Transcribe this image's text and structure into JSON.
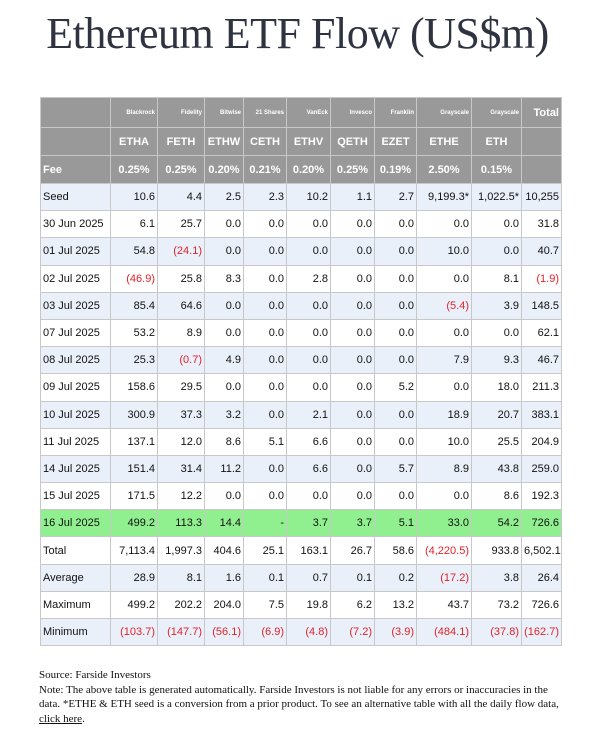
{
  "title": "Ethereum ETF Flow (US$m)",
  "issuers": [
    "Blackrock",
    "Fidelity",
    "Bitwise",
    "21 Shares",
    "VanEck",
    "Invesco",
    "Franklin",
    "Grayscale",
    "Grayscale"
  ],
  "total_header": "Total",
  "tickers": [
    "ETHA",
    "FETH",
    "ETHW",
    "CETH",
    "ETHV",
    "QETH",
    "EZET",
    "ETHE",
    "ETH"
  ],
  "fee_label": "Fee",
  "fees": [
    "0.25%",
    "0.25%",
    "0.20%",
    "0.21%",
    "0.20%",
    "0.25%",
    "0.19%",
    "2.50%",
    "0.15%"
  ],
  "rows": [
    {
      "label": "Seed",
      "values": [
        "10.6",
        "4.4",
        "2.5",
        "2.3",
        "10.2",
        "1.1",
        "2.7",
        "9,199.3*",
        "1,022.5*",
        "10,255"
      ]
    },
    {
      "label": "30 Jun 2025",
      "values": [
        "6.1",
        "25.7",
        "0.0",
        "0.0",
        "0.0",
        "0.0",
        "0.0",
        "0.0",
        "0.0",
        "31.8"
      ]
    },
    {
      "label": "01 Jul 2025",
      "values": [
        "54.8",
        "(24.1)",
        "0.0",
        "0.0",
        "0.0",
        "0.0",
        "0.0",
        "10.0",
        "0.0",
        "40.7"
      ]
    },
    {
      "label": "02 Jul 2025",
      "values": [
        "(46.9)",
        "25.8",
        "8.3",
        "0.0",
        "2.8",
        "0.0",
        "0.0",
        "0.0",
        "8.1",
        "(1.9)"
      ]
    },
    {
      "label": "03 Jul 2025",
      "values": [
        "85.4",
        "64.6",
        "0.0",
        "0.0",
        "0.0",
        "0.0",
        "0.0",
        "(5.4)",
        "3.9",
        "148.5"
      ]
    },
    {
      "label": "07 Jul 2025",
      "values": [
        "53.2",
        "8.9",
        "0.0",
        "0.0",
        "0.0",
        "0.0",
        "0.0",
        "0.0",
        "0.0",
        "62.1"
      ]
    },
    {
      "label": "08 Jul 2025",
      "values": [
        "25.3",
        "(0.7)",
        "4.9",
        "0.0",
        "0.0",
        "0.0",
        "0.0",
        "7.9",
        "9.3",
        "46.7"
      ]
    },
    {
      "label": "09 Jul 2025",
      "values": [
        "158.6",
        "29.5",
        "0.0",
        "0.0",
        "0.0",
        "0.0",
        "5.2",
        "0.0",
        "18.0",
        "211.3"
      ]
    },
    {
      "label": "10 Jul 2025",
      "values": [
        "300.9",
        "37.3",
        "3.2",
        "0.0",
        "2.1",
        "0.0",
        "0.0",
        "18.9",
        "20.7",
        "383.1"
      ]
    },
    {
      "label": "11 Jul 2025",
      "values": [
        "137.1",
        "12.0",
        "8.6",
        "5.1",
        "6.6",
        "0.0",
        "0.0",
        "10.0",
        "25.5",
        "204.9"
      ]
    },
    {
      "label": "14 Jul 2025",
      "values": [
        "151.4",
        "31.4",
        "11.2",
        "0.0",
        "6.6",
        "0.0",
        "5.7",
        "8.9",
        "43.8",
        "259.0"
      ]
    },
    {
      "label": "15 Jul 2025",
      "values": [
        "171.5",
        "12.2",
        "0.0",
        "0.0",
        "0.0",
        "0.0",
        "0.0",
        "0.0",
        "8.6",
        "192.3"
      ]
    },
    {
      "label": "16 Jul 2025",
      "values": [
        "499.2",
        "113.3",
        "14.4",
        "-",
        "3.7",
        "3.7",
        "5.1",
        "33.0",
        "54.2",
        "726.6"
      ]
    },
    {
      "label": "Total",
      "values": [
        "7,113.4",
        "1,997.3",
        "404.6",
        "25.1",
        "163.1",
        "26.7",
        "58.6",
        "(4,220.5)",
        "933.8",
        "6,502.1"
      ]
    },
    {
      "label": "Average",
      "values": [
        "28.9",
        "8.1",
        "1.6",
        "0.1",
        "0.7",
        "0.1",
        "0.2",
        "(17.2)",
        "3.8",
        "26.4"
      ]
    },
    {
      "label": "Maximum",
      "values": [
        "499.2",
        "202.2",
        "204.0",
        "7.5",
        "19.8",
        "6.2",
        "13.2",
        "43.7",
        "73.2",
        "726.6"
      ]
    },
    {
      "label": "Minimum",
      "values": [
        "(103.7)",
        "(147.7)",
        "(56.1)",
        "(6.9)",
        "(4.8)",
        "(7.2)",
        "(3.9)",
        "(484.1)",
        "(37.8)",
        "(162.7)"
      ]
    }
  ],
  "notes": {
    "source": "Source: Farside Investors",
    "note_text": "Note: The above table is generated automatically. Farside Investors is not liable for any errors or inaccuracies in the data. *ETHE & ETH seed is a conversion from a prior product.  To see an alternative table with all the daily flow data, ",
    "link_text": "click here",
    "trailing": "."
  },
  "colors": {
    "header_bg": "#999999",
    "alt_row_bg": "#eaf0fa",
    "highlight_row_bg": "#90f090",
    "negative_text": "#e0232a"
  }
}
